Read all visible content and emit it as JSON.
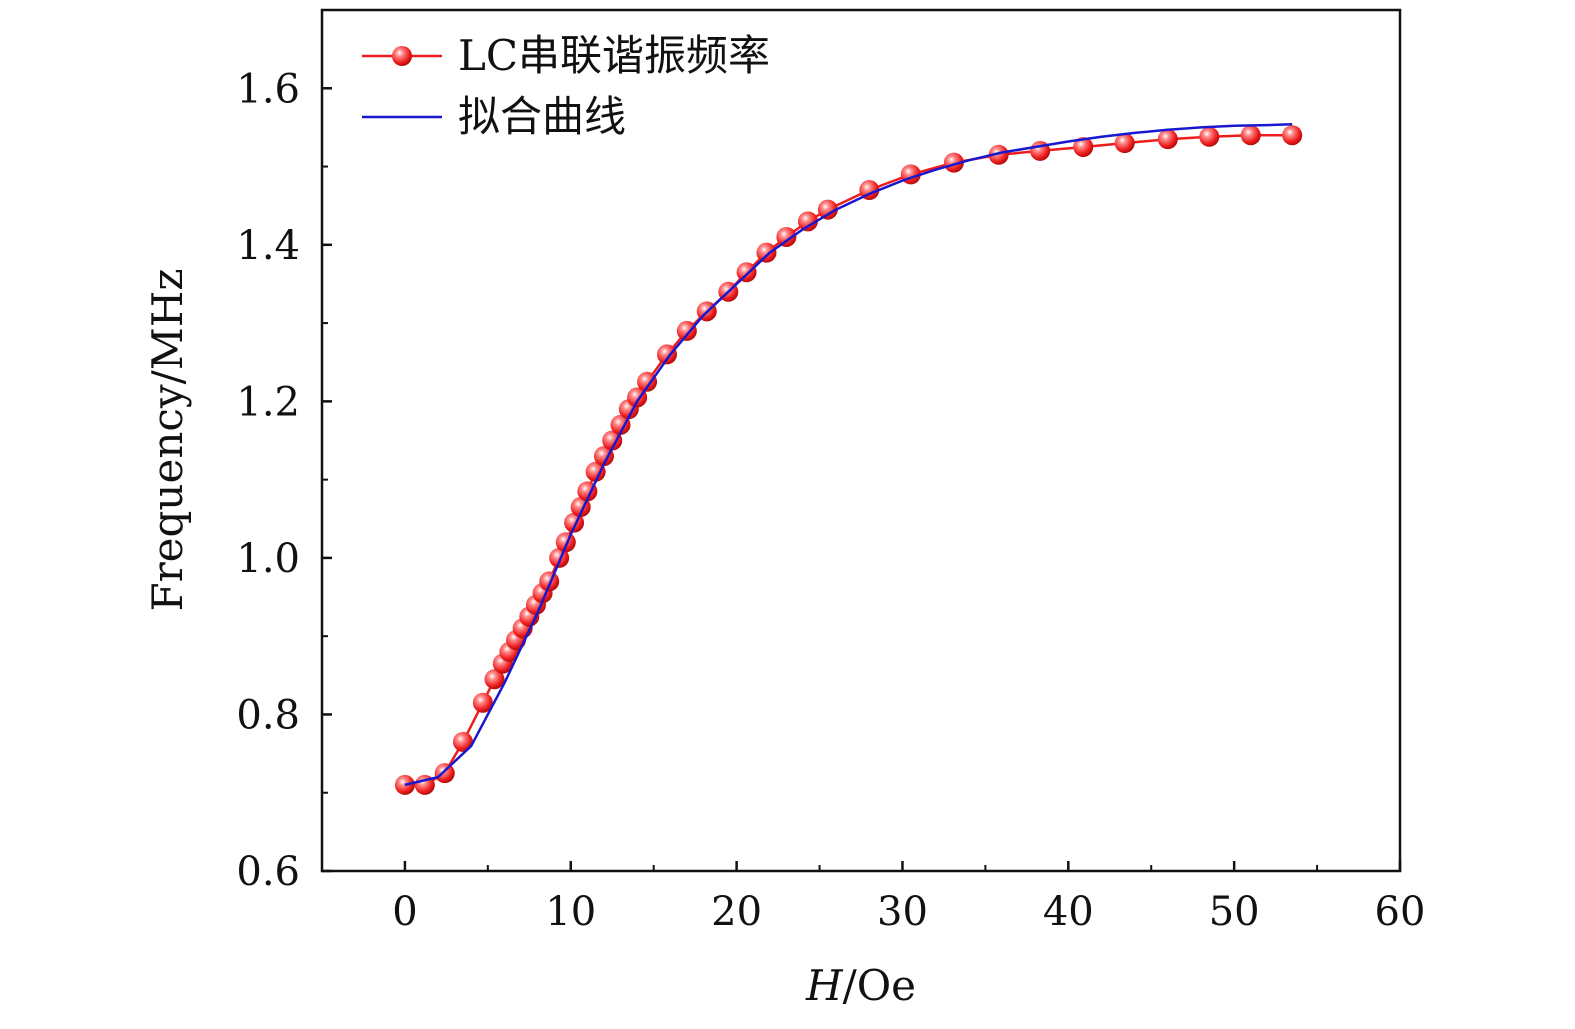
{
  "chart_data": {
    "type": "line",
    "xlabel_italic": "H",
    "xlabel_rest": "/Oe",
    "ylabel": "Frequency/MHz",
    "xlim": [
      -5,
      60
    ],
    "ylim": [
      0.6,
      1.7
    ],
    "x_ticks": [
      0,
      10,
      20,
      30,
      40,
      50,
      60
    ],
    "y_ticks": [
      0.6,
      0.8,
      1.0,
      1.2,
      1.4,
      1.6
    ],
    "x_tick_labels": [
      "0",
      "10",
      "20",
      "30",
      "40",
      "50",
      "60"
    ],
    "y_tick_labels": [
      "0.6",
      "0.8",
      "1.0",
      "1.2",
      "1.4",
      "1.6"
    ],
    "grid": false,
    "legend_position": "top-left",
    "series": [
      {
        "name": "LC串联谐振频率",
        "color": "#ee1c1c",
        "marker": "sphere",
        "x": [
          0,
          1.2,
          2.4,
          3.5,
          4.7,
          5.4,
          5.9,
          6.3,
          6.7,
          7.1,
          7.5,
          7.9,
          8.3,
          8.7,
          9.3,
          9.7,
          10.2,
          10.6,
          11.0,
          11.5,
          12.0,
          12.5,
          13.0,
          13.5,
          14.0,
          14.6,
          15.8,
          17.0,
          18.2,
          19.5,
          20.6,
          21.8,
          23.0,
          24.3,
          25.5,
          28.0,
          30.5,
          33.1,
          35.8,
          38.3,
          40.9,
          43.4,
          46.0,
          48.5,
          51.0,
          53.5
        ],
        "y": [
          0.71,
          0.71,
          0.725,
          0.765,
          0.815,
          0.845,
          0.865,
          0.88,
          0.895,
          0.91,
          0.925,
          0.94,
          0.955,
          0.97,
          1.0,
          1.02,
          1.045,
          1.065,
          1.085,
          1.11,
          1.13,
          1.15,
          1.17,
          1.19,
          1.205,
          1.225,
          1.26,
          1.29,
          1.315,
          1.34,
          1.365,
          1.39,
          1.41,
          1.43,
          1.445,
          1.47,
          1.49,
          1.505,
          1.515,
          1.52,
          1.525,
          1.53,
          1.535,
          1.538,
          1.54,
          1.54
        ]
      },
      {
        "name": "拟合曲线",
        "color": "#1818d0",
        "marker": "none",
        "x": [
          0,
          2,
          4,
          6,
          8,
          10,
          12,
          14,
          16,
          18,
          20,
          22,
          24,
          26,
          28,
          30,
          32,
          34,
          36,
          38,
          40,
          42,
          44,
          46,
          48,
          50,
          52,
          53.5
        ],
        "y": [
          0.71,
          0.72,
          0.76,
          0.84,
          0.93,
          1.03,
          1.12,
          1.2,
          1.26,
          1.31,
          1.35,
          1.39,
          1.42,
          1.445,
          1.465,
          1.482,
          1.496,
          1.508,
          1.518,
          1.525,
          1.532,
          1.538,
          1.543,
          1.547,
          1.55,
          1.552,
          1.553,
          1.554
        ]
      }
    ]
  }
}
